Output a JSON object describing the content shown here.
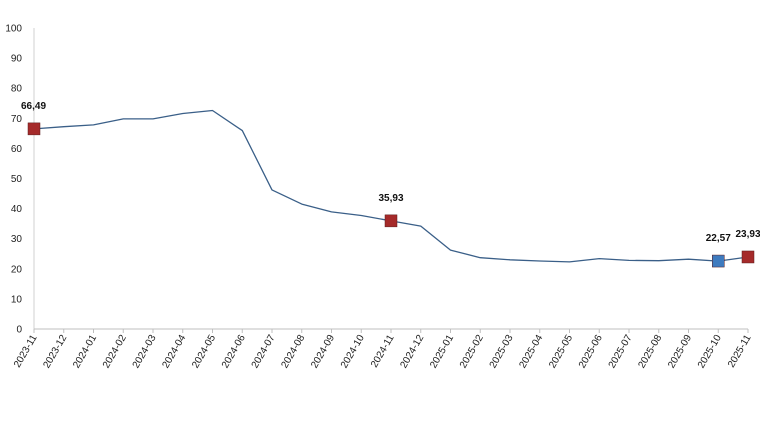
{
  "chart_data": {
    "type": "line",
    "title": "",
    "xlabel": "",
    "ylabel": "",
    "ylim": [
      0,
      100
    ],
    "y_ticks": [
      "0",
      "10",
      "20",
      "30",
      "40",
      "50",
      "60",
      "70",
      "80",
      "90",
      "100"
    ],
    "grid": false,
    "legend": "none",
    "line_color": "#3A5F88",
    "categories": [
      "2023-11",
      "2023-12",
      "2024-01",
      "2024-02",
      "2024-03",
      "2024-04",
      "2024-05",
      "2024-06",
      "2024-07",
      "2024-08",
      "2024-09",
      "2024-10",
      "2024-11",
      "2024-12",
      "2025-01",
      "2025-02",
      "2025-03",
      "2025-04",
      "2025-05",
      "2025-06",
      "2025-07",
      "2025-08",
      "2025-09",
      "2025-10",
      "2025-11"
    ],
    "series": [
      {
        "values": [
          66.49,
          67.2,
          67.8,
          69.8,
          69.8,
          71.6,
          72.6,
          65.9,
          46.2,
          41.5,
          38.9,
          37.7,
          35.93,
          34.2,
          26.2,
          23.7,
          23.0,
          22.6,
          22.3,
          23.4,
          22.8,
          22.7,
          23.2,
          22.57,
          23.93
        ]
      }
    ],
    "highlights": [
      {
        "index": 0,
        "label": "66,49",
        "color": "#A52A2A"
      },
      {
        "index": 12,
        "label": "35,93",
        "color": "#A52A2A"
      },
      {
        "index": 23,
        "label": "22,57",
        "color": "#3E7BBF"
      },
      {
        "index": 24,
        "label": "23,93",
        "color": "#A52A2A"
      }
    ]
  }
}
